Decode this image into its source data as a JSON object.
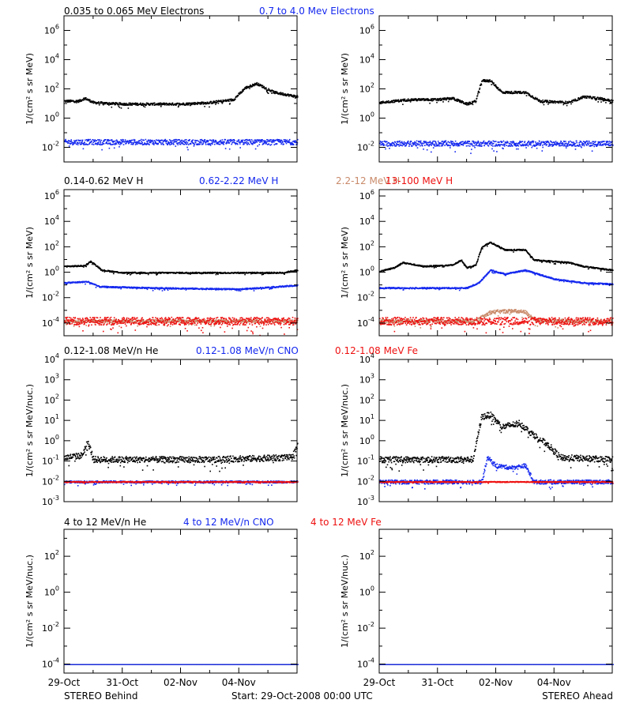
{
  "colors": {
    "black": "#000000",
    "blue": "#1428ee",
    "brown": "#c98a6a",
    "red": "#ee1010"
  },
  "footer": {
    "left": "STEREO Behind",
    "center": "Start: 29-Oct-2008 00:00 UTC",
    "right": "STEREO Ahead"
  },
  "x_tick_labels": [
    "29-Oct",
    "31-Oct",
    "02-Nov",
    "04-Nov"
  ],
  "rows": [
    {
      "legend": [
        {
          "text": "0.035 to 0.065 MeV Electrons",
          "color": "black"
        },
        {
          "text": "0.7 to 4.0 Mev Electrons",
          "color": "blue"
        }
      ],
      "ylabel": "1/(cm² s sr MeV)"
    },
    {
      "legend": [
        {
          "text": "0.14-0.62 MeV H",
          "color": "black"
        },
        {
          "text": "0.62-2.22 MeV H",
          "color": "blue"
        },
        {
          "text": "2.2-12 MeV H",
          "color": "brown"
        },
        {
          "text": "13-100 MeV H",
          "color": "red"
        }
      ],
      "ylabel": "1/(cm² s sr MeV)"
    },
    {
      "legend": [
        {
          "text": "0.12-1.08 MeV/n He",
          "color": "black"
        },
        {
          "text": "0.12-1.08 MeV/n CNO",
          "color": "blue"
        },
        {
          "text": "0.12-1.08 MeV Fe",
          "color": "red"
        }
      ],
      "ylabel": "1/(cm² s sr MeV/nuc.)"
    },
    {
      "legend": [
        {
          "text": "4 to 12 MeV/n He",
          "color": "black"
        },
        {
          "text": "4 to 12 MeV/n CNO",
          "color": "blue"
        },
        {
          "text": "4 to 12 MeV Fe",
          "color": "red"
        }
      ],
      "ylabel": "1/(cm² s sr MeV/nuc.)"
    }
  ],
  "chart_data": [
    {
      "type": "scatter",
      "spacecraft": "STEREO Behind",
      "x_unit": "days from start",
      "xlim": [
        0,
        8
      ],
      "yscale": "log",
      "yticks": [
        {
          "exp": -2
        },
        {
          "exp": 0
        },
        {
          "exp": 2
        },
        {
          "exp": 4
        },
        {
          "exp": 6
        }
      ],
      "ylim_exp": [
        -3,
        7
      ],
      "series": [
        {
          "name": "0.035 to 0.065 MeV Electrons",
          "color": "black",
          "scatter": 0.08,
          "points": [
            [
              0,
              1.2
            ],
            [
              0.5,
              1.2
            ],
            [
              0.7,
              1.4
            ],
            [
              1,
              1.1
            ],
            [
              2,
              1.0
            ],
            [
              3,
              1.0
            ],
            [
              4,
              1.0
            ],
            [
              5,
              1.1
            ],
            [
              5.8,
              1.3
            ],
            [
              6.2,
              2.1
            ],
            [
              6.6,
              2.4
            ],
            [
              7.2,
              1.8
            ],
            [
              8,
              1.5
            ]
          ]
        },
        {
          "name": "0.7 to 4.0 Mev Electrons",
          "color": "blue",
          "scatter": 0.18,
          "points": [
            [
              0,
              -1.6
            ],
            [
              8,
              -1.6
            ]
          ]
        }
      ]
    },
    {
      "type": "scatter",
      "spacecraft": "STEREO Ahead",
      "x_unit": "days from start",
      "xlim": [
        0,
        8
      ],
      "yscale": "log",
      "yticks": [
        {
          "exp": -2
        },
        {
          "exp": 0
        },
        {
          "exp": 2
        },
        {
          "exp": 4
        },
        {
          "exp": 6
        }
      ],
      "ylim_exp": [
        -3,
        7
      ],
      "series": [
        {
          "name": "0.035 to 0.065 MeV Electrons",
          "color": "black",
          "scatter": 0.08,
          "points": [
            [
              0,
              1.1
            ],
            [
              1,
              1.3
            ],
            [
              2,
              1.3
            ],
            [
              2.5,
              1.4
            ],
            [
              3,
              1.0
            ],
            [
              3.3,
              1.2
            ],
            [
              3.5,
              2.6
            ],
            [
              3.8,
              2.6
            ],
            [
              4.2,
              1.8
            ],
            [
              5,
              1.8
            ],
            [
              5.5,
              1.2
            ],
            [
              6.5,
              1.1
            ],
            [
              7,
              1.5
            ],
            [
              7.5,
              1.4
            ],
            [
              8,
              1.2
            ]
          ]
        },
        {
          "name": "0.7 to 4.0 Mev Electrons",
          "color": "blue",
          "scatter": 0.18,
          "points": [
            [
              0,
              -1.7
            ],
            [
              8,
              -1.7
            ]
          ]
        }
      ]
    },
    {
      "type": "scatter",
      "spacecraft": "STEREO Behind",
      "x_unit": "days from start",
      "xlim": [
        0,
        8
      ],
      "yscale": "log",
      "yticks": [
        {
          "exp": -4
        },
        {
          "exp": -2
        },
        {
          "exp": 0
        },
        {
          "exp": 2
        },
        {
          "exp": 4
        },
        {
          "exp": 6
        }
      ],
      "ylim_exp": [
        -5,
        6.5
      ],
      "series": [
        {
          "name": "0.14-0.62 MeV H",
          "color": "black",
          "scatter": 0.05,
          "points": [
            [
              0,
              0.5
            ],
            [
              0.7,
              0.55
            ],
            [
              0.9,
              0.9
            ],
            [
              1.3,
              0.2
            ],
            [
              2,
              0.0
            ],
            [
              3,
              0.0
            ],
            [
              5,
              0.0
            ],
            [
              7.5,
              0.0
            ],
            [
              8,
              0.2
            ]
          ]
        },
        {
          "name": "0.62-2.22 MeV H",
          "color": "blue",
          "scatter": 0.05,
          "points": [
            [
              0,
              -0.8
            ],
            [
              0.8,
              -0.7
            ],
            [
              1.2,
              -1.1
            ],
            [
              3,
              -1.2
            ],
            [
              6,
              -1.3
            ],
            [
              8,
              -1.0
            ]
          ]
        },
        {
          "name": "2.2-12 MeV H",
          "color": "brown",
          "scatter": 0.12,
          "points": [
            [
              0,
              -3.8
            ],
            [
              8,
              -3.8
            ]
          ]
        },
        {
          "name": "13-100 MeV H",
          "color": "red",
          "scatter": 0.3,
          "points": [
            [
              0,
              -3.8
            ],
            [
              8,
              -3.8
            ]
          ]
        }
      ]
    },
    {
      "type": "scatter",
      "spacecraft": "STEREO Ahead",
      "x_unit": "days from start",
      "xlim": [
        0,
        8
      ],
      "yscale": "log",
      "yticks": [
        {
          "exp": -4
        },
        {
          "exp": -2
        },
        {
          "exp": 0
        },
        {
          "exp": 2
        },
        {
          "exp": 4
        },
        {
          "exp": 6
        }
      ],
      "ylim_exp": [
        -5,
        6.5
      ],
      "series": [
        {
          "name": "0.14-0.62 MeV H",
          "color": "black",
          "scatter": 0.05,
          "points": [
            [
              0,
              0.1
            ],
            [
              0.5,
              0.4
            ],
            [
              0.8,
              0.8
            ],
            [
              1.5,
              0.5
            ],
            [
              2.5,
              0.6
            ],
            [
              2.8,
              1.0
            ],
            [
              3.0,
              0.4
            ],
            [
              3.3,
              0.6
            ],
            [
              3.5,
              2.0
            ],
            [
              3.8,
              2.4
            ],
            [
              4.3,
              1.8
            ],
            [
              5,
              1.8
            ],
            [
              5.3,
              1.0
            ],
            [
              6.5,
              0.8
            ],
            [
              7,
              0.5
            ],
            [
              8,
              0.2
            ]
          ]
        },
        {
          "name": "0.62-2.22 MeV H",
          "color": "blue",
          "scatter": 0.05,
          "points": [
            [
              0,
              -1.2
            ],
            [
              3,
              -1.2
            ],
            [
              3.4,
              -0.8
            ],
            [
              3.8,
              0.2
            ],
            [
              4.3,
              -0.1
            ],
            [
              5,
              0.2
            ],
            [
              6,
              -0.5
            ],
            [
              7,
              -0.8
            ],
            [
              8,
              -0.9
            ]
          ]
        },
        {
          "name": "2.2-12 MeV H",
          "color": "brown",
          "scatter": 0.15,
          "points": [
            [
              0,
              -3.8
            ],
            [
              3.3,
              -3.8
            ],
            [
              3.8,
              -3.1
            ],
            [
              4.5,
              -3.0
            ],
            [
              5,
              -3.1
            ],
            [
              5.4,
              -3.8
            ],
            [
              8,
              -3.8
            ]
          ]
        },
        {
          "name": "13-100 MeV H",
          "color": "red",
          "scatter": 0.3,
          "points": [
            [
              0,
              -3.8
            ],
            [
              8,
              -3.8
            ]
          ]
        }
      ]
    },
    {
      "type": "scatter",
      "spacecraft": "STEREO Behind",
      "x_unit": "days from start",
      "xlim": [
        0,
        8
      ],
      "yscale": "log",
      "yticks": [
        {
          "exp": -3
        },
        {
          "exp": -2
        },
        {
          "exp": -1
        },
        {
          "exp": 0
        },
        {
          "exp": 1
        },
        {
          "exp": 2
        },
        {
          "exp": 3
        },
        {
          "exp": 4
        }
      ],
      "ylim_exp": [
        -3,
        4
      ],
      "series": [
        {
          "name": "0.12-1.08 MeV/n He",
          "color": "black",
          "scatter": 0.15,
          "points": [
            [
              0,
              -0.8
            ],
            [
              0.6,
              -0.7
            ],
            [
              0.8,
              0.0
            ],
            [
              1.0,
              -0.9
            ],
            [
              2,
              -0.9
            ],
            [
              5,
              -0.9
            ],
            [
              7.8,
              -0.8
            ],
            [
              8,
              -0.2
            ]
          ]
        },
        {
          "name": "0.12-1.08 MeV/n CNO",
          "color": "blue",
          "scatter": 0.05,
          "points": [
            [
              0,
              -2.0
            ],
            [
              8,
              -2.0
            ]
          ]
        },
        {
          "name": "0.12-1.08 MeV Fe",
          "color": "red",
          "scatter": 0.02,
          "points": [
            [
              0,
              -2.0
            ],
            [
              8,
              -2.0
            ]
          ]
        }
      ]
    },
    {
      "type": "scatter",
      "spacecraft": "STEREO Ahead",
      "x_unit": "days from start",
      "xlim": [
        0,
        8
      ],
      "yscale": "log",
      "yticks": [
        {
          "exp": -3
        },
        {
          "exp": -2
        },
        {
          "exp": -1
        },
        {
          "exp": 0
        },
        {
          "exp": 1
        },
        {
          "exp": 2
        },
        {
          "exp": 3
        },
        {
          "exp": 4
        }
      ],
      "ylim_exp": [
        -3,
        4
      ],
      "series": [
        {
          "name": "0.12-1.08 MeV/n He",
          "color": "black",
          "scatter": 0.15,
          "points": [
            [
              0,
              -0.9
            ],
            [
              3.2,
              -0.9
            ],
            [
              3.5,
              1.2
            ],
            [
              3.8,
              1.3
            ],
            [
              4.2,
              0.7
            ],
            [
              4.8,
              0.9
            ],
            [
              5.2,
              0.4
            ],
            [
              5.8,
              -0.2
            ],
            [
              6.2,
              -0.8
            ],
            [
              8,
              -0.9
            ]
          ]
        },
        {
          "name": "0.12-1.08 MeV/n CNO",
          "color": "blue",
          "scatter": 0.1,
          "points": [
            [
              0,
              -2.0
            ],
            [
              3.5,
              -2.0
            ],
            [
              3.7,
              -0.8
            ],
            [
              4.0,
              -1.2
            ],
            [
              4.5,
              -1.3
            ],
            [
              5.0,
              -1.2
            ],
            [
              5.3,
              -2.0
            ],
            [
              8,
              -2.0
            ]
          ]
        },
        {
          "name": "0.12-1.08 MeV Fe",
          "color": "red",
          "scatter": 0.02,
          "points": [
            [
              0,
              -2.0
            ],
            [
              8,
              -2.0
            ]
          ]
        }
      ]
    },
    {
      "type": "scatter",
      "spacecraft": "STEREO Behind",
      "x_unit": "days from start",
      "xlim": [
        0,
        8
      ],
      "yscale": "log",
      "yticks": [
        {
          "exp": -4
        },
        {
          "exp": -2
        },
        {
          "exp": 0
        },
        {
          "exp": 2
        }
      ],
      "ylim_exp": [
        -4.5,
        3.5
      ],
      "series": [
        {
          "name": "4 to 12 MeV/n He",
          "color": "black",
          "scatter": 0,
          "points": [
            [
              0,
              -4.0
            ],
            [
              8,
              -4.0
            ]
          ]
        },
        {
          "name": "4 to 12 MeV/n CNO",
          "color": "blue",
          "scatter": 0,
          "points": [
            [
              0,
              -4.0
            ],
            [
              8,
              -4.0
            ]
          ]
        }
      ]
    },
    {
      "type": "scatter",
      "spacecraft": "STEREO Ahead",
      "x_unit": "days from start",
      "xlim": [
        0,
        8
      ],
      "yscale": "log",
      "yticks": [
        {
          "exp": -4
        },
        {
          "exp": -2
        },
        {
          "exp": 0
        },
        {
          "exp": 2
        }
      ],
      "ylim_exp": [
        -4.5,
        3.5
      ],
      "series": [
        {
          "name": "4 to 12 MeV/n He",
          "color": "black",
          "scatter": 0,
          "points": [
            [
              0,
              -4.0
            ],
            [
              8,
              -4.0
            ]
          ]
        },
        {
          "name": "4 to 12 MeV/n CNO",
          "color": "blue",
          "scatter": 0,
          "points": [
            [
              0,
              -4.0
            ],
            [
              8,
              -4.0
            ]
          ]
        }
      ]
    }
  ]
}
